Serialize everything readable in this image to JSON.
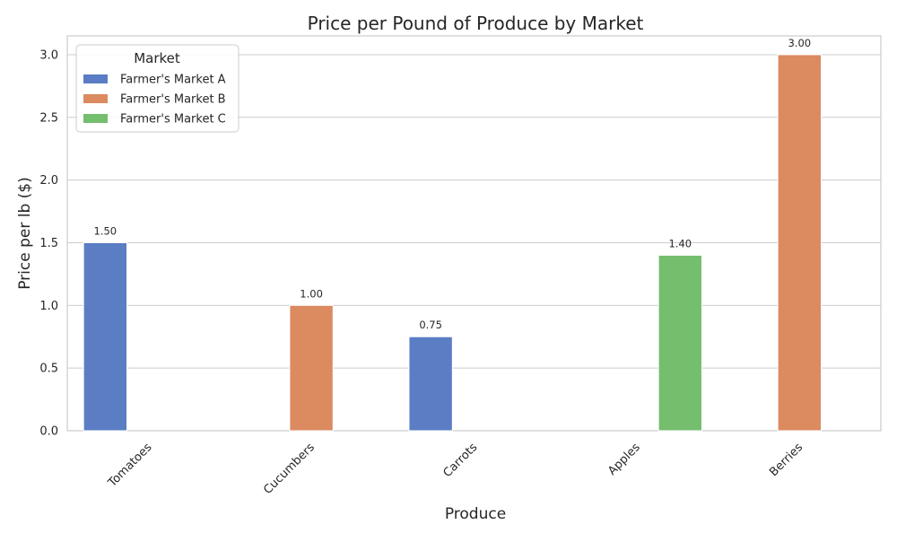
{
  "chart_data": {
    "type": "bar",
    "title": "Price per Pound of Produce by Market",
    "xlabel": "Produce",
    "ylabel": "Price per lb ($)",
    "categories": [
      "Tomatoes",
      "Cucumbers",
      "Carrots",
      "Apples",
      "Berries"
    ],
    "series": [
      {
        "name": "Farmer's Market A",
        "color": "#5a7dc4",
        "values": [
          1.5,
          null,
          0.75,
          null,
          null
        ]
      },
      {
        "name": "Farmer's Market B",
        "color": "#dc8a5f",
        "values": [
          null,
          1.0,
          null,
          null,
          3.0
        ]
      },
      {
        "name": "Farmer's Market C",
        "color": "#74be6e",
        "values": [
          null,
          null,
          null,
          1.4,
          null
        ]
      }
    ],
    "data_labels": [
      "1.50",
      "1.00",
      "0.75",
      "1.40",
      "3.00"
    ],
    "ylim": [
      0,
      3.15
    ],
    "yticks": [
      0.0,
      0.5,
      1.0,
      1.5,
      2.0,
      2.5,
      3.0
    ],
    "ytick_labels": [
      "0.0",
      "0.5",
      "1.0",
      "1.5",
      "2.0",
      "2.5",
      "3.0"
    ],
    "grid": "horizontal",
    "legend": {
      "title": "Market",
      "placement": "upper-left"
    }
  }
}
